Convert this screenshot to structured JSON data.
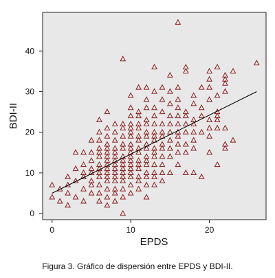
{
  "caption": "Figura 3. Gráfico de dispersión entre EPDS y BDI-II.",
  "colors": {
    "plot_background": "#e8e8e8",
    "marker": "#8b1a1a",
    "fit_line": "#000000"
  },
  "chart_data": {
    "type": "scatter",
    "xlabel": "EPDS",
    "ylabel": "BDI-II",
    "xlim": [
      -1.2,
      27.2
    ],
    "ylim": [
      -1.5,
      49.5
    ],
    "xticks": [
      0,
      10,
      20
    ],
    "yticks": [
      0,
      10,
      20,
      30,
      40
    ],
    "marker": "triangle-open",
    "grid": false,
    "fit_line": {
      "x": [
        0,
        26
      ],
      "y": [
        5,
        30
      ]
    },
    "points": [
      [
        0,
        4
      ],
      [
        0,
        7
      ],
      [
        1,
        6
      ],
      [
        1,
        3
      ],
      [
        2,
        2
      ],
      [
        2,
        5
      ],
      [
        2,
        7
      ],
      [
        2,
        9
      ],
      [
        3,
        4
      ],
      [
        3,
        8
      ],
      [
        3,
        11
      ],
      [
        3,
        15
      ],
      [
        4,
        3
      ],
      [
        4,
        6
      ],
      [
        4,
        9
      ],
      [
        4,
        10
      ],
      [
        4,
        12
      ],
      [
        4,
        15
      ],
      [
        5,
        5
      ],
      [
        5,
        7
      ],
      [
        5,
        8
      ],
      [
        5,
        10
      ],
      [
        5,
        11
      ],
      [
        5,
        13
      ],
      [
        5,
        15
      ],
      [
        5,
        18
      ],
      [
        6,
        3
      ],
      [
        6,
        5
      ],
      [
        6,
        7
      ],
      [
        6,
        9
      ],
      [
        6,
        10
      ],
      [
        6,
        11
      ],
      [
        6,
        12
      ],
      [
        6,
        14
      ],
      [
        6,
        15
      ],
      [
        6,
        16
      ],
      [
        6,
        18
      ],
      [
        6,
        20
      ],
      [
        6,
        23
      ],
      [
        7,
        2
      ],
      [
        7,
        4
      ],
      [
        7,
        6
      ],
      [
        7,
        8
      ],
      [
        7,
        9
      ],
      [
        7,
        10
      ],
      [
        7,
        11
      ],
      [
        7,
        12
      ],
      [
        7,
        13
      ],
      [
        7,
        14
      ],
      [
        7,
        15
      ],
      [
        7,
        16
      ],
      [
        7,
        17
      ],
      [
        7,
        19
      ],
      [
        7,
        21
      ],
      [
        7,
        25
      ],
      [
        8,
        3
      ],
      [
        8,
        5
      ],
      [
        8,
        6
      ],
      [
        8,
        8
      ],
      [
        8,
        9
      ],
      [
        8,
        10
      ],
      [
        8,
        11
      ],
      [
        8,
        12
      ],
      [
        8,
        13
      ],
      [
        8,
        14
      ],
      [
        8,
        15
      ],
      [
        8,
        16
      ],
      [
        8,
        18
      ],
      [
        8,
        20
      ],
      [
        8,
        22
      ],
      [
        9,
        0
      ],
      [
        9,
        4
      ],
      [
        9,
        6
      ],
      [
        9,
        8
      ],
      [
        9,
        9
      ],
      [
        9,
        10
      ],
      [
        9,
        11
      ],
      [
        9,
        12
      ],
      [
        9,
        13
      ],
      [
        9,
        14
      ],
      [
        9,
        16
      ],
      [
        9,
        17
      ],
      [
        9,
        19
      ],
      [
        9,
        21
      ],
      [
        9,
        22
      ],
      [
        9,
        38
      ],
      [
        10,
        5
      ],
      [
        10,
        7
      ],
      [
        10,
        9
      ],
      [
        10,
        10
      ],
      [
        10,
        11
      ],
      [
        10,
        12
      ],
      [
        10,
        13
      ],
      [
        10,
        14
      ],
      [
        10,
        15
      ],
      [
        10,
        16
      ],
      [
        10,
        17
      ],
      [
        10,
        19
      ],
      [
        10,
        20
      ],
      [
        10,
        21
      ],
      [
        10,
        22
      ],
      [
        10,
        24
      ],
      [
        10,
        26
      ],
      [
        10,
        29
      ],
      [
        11,
        6
      ],
      [
        11,
        8
      ],
      [
        11,
        9
      ],
      [
        11,
        11
      ],
      [
        11,
        12
      ],
      [
        11,
        13
      ],
      [
        11,
        15
      ],
      [
        11,
        16
      ],
      [
        11,
        18
      ],
      [
        11,
        19
      ],
      [
        11,
        21
      ],
      [
        11,
        22
      ],
      [
        11,
        24
      ],
      [
        11,
        25
      ],
      [
        11,
        31
      ],
      [
        12,
        4
      ],
      [
        12,
        7
      ],
      [
        12,
        9
      ],
      [
        12,
        10
      ],
      [
        12,
        12
      ],
      [
        12,
        13
      ],
      [
        12,
        14
      ],
      [
        12,
        16
      ],
      [
        12,
        17
      ],
      [
        12,
        19
      ],
      [
        12,
        20
      ],
      [
        12,
        22
      ],
      [
        12,
        23
      ],
      [
        12,
        26
      ],
      [
        12,
        28
      ],
      [
        12,
        31
      ],
      [
        13,
        7
      ],
      [
        13,
        9
      ],
      [
        13,
        10
      ],
      [
        13,
        12
      ],
      [
        13,
        14
      ],
      [
        13,
        15
      ],
      [
        13,
        16
      ],
      [
        13,
        18
      ],
      [
        13,
        19
      ],
      [
        13,
        20
      ],
      [
        13,
        22
      ],
      [
        13,
        24
      ],
      [
        13,
        26
      ],
      [
        13,
        30
      ],
      [
        13,
        36
      ],
      [
        14,
        8
      ],
      [
        14,
        10
      ],
      [
        14,
        12
      ],
      [
        14,
        14
      ],
      [
        14,
        16
      ],
      [
        14,
        17
      ],
      [
        14,
        19
      ],
      [
        14,
        20
      ],
      [
        14,
        22
      ],
      [
        14,
        25
      ],
      [
        14,
        28
      ],
      [
        14,
        31
      ],
      [
        15,
        10
      ],
      [
        15,
        14
      ],
      [
        15,
        16
      ],
      [
        15,
        18
      ],
      [
        15,
        20
      ],
      [
        15,
        22
      ],
      [
        15,
        24
      ],
      [
        15,
        27
      ],
      [
        15,
        30
      ],
      [
        15,
        34
      ],
      [
        16,
        12
      ],
      [
        16,
        15
      ],
      [
        16,
        17
      ],
      [
        16,
        19
      ],
      [
        16,
        20
      ],
      [
        16,
        22
      ],
      [
        16,
        24
      ],
      [
        16,
        26
      ],
      [
        16,
        28
      ],
      [
        16,
        31
      ],
      [
        16,
        47
      ],
      [
        17,
        10
      ],
      [
        17,
        15
      ],
      [
        17,
        17
      ],
      [
        17,
        20
      ],
      [
        17,
        22
      ],
      [
        17,
        24
      ],
      [
        17,
        25
      ],
      [
        17,
        35
      ],
      [
        17,
        36
      ],
      [
        18,
        10
      ],
      [
        18,
        16
      ],
      [
        18,
        18
      ],
      [
        18,
        20
      ],
      [
        18,
        22
      ],
      [
        18,
        23
      ],
      [
        18,
        27
      ],
      [
        18,
        29
      ],
      [
        19,
        9
      ],
      [
        19,
        20
      ],
      [
        19,
        24
      ],
      [
        19,
        26
      ],
      [
        19,
        31
      ],
      [
        20,
        15
      ],
      [
        20,
        19
      ],
      [
        20,
        21
      ],
      [
        20,
        23
      ],
      [
        20,
        28
      ],
      [
        20,
        31
      ],
      [
        20,
        33
      ],
      [
        20,
        35
      ],
      [
        21,
        12
      ],
      [
        21,
        21
      ],
      [
        21,
        23
      ],
      [
        21,
        24
      ],
      [
        21,
        25
      ],
      [
        21,
        29
      ],
      [
        21,
        36
      ],
      [
        22,
        16
      ],
      [
        22,
        17
      ],
      [
        22,
        21
      ],
      [
        22,
        30
      ],
      [
        22,
        32
      ],
      [
        22,
        33
      ],
      [
        22,
        34
      ],
      [
        23,
        18
      ],
      [
        23,
        35
      ],
      [
        26,
        37
      ]
    ]
  }
}
